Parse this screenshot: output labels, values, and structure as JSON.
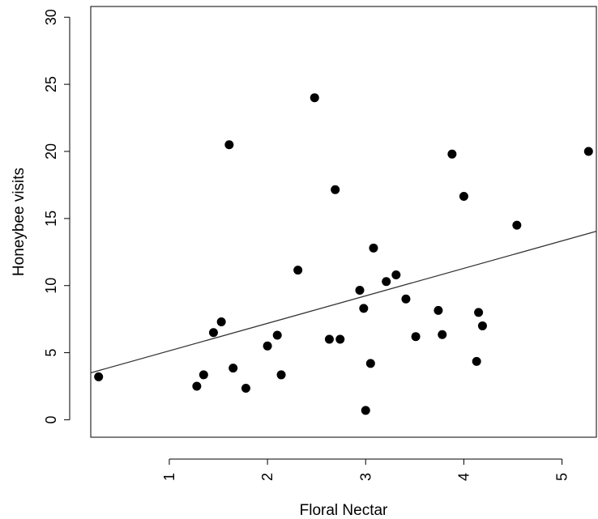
{
  "chart_data": {
    "type": "scatter",
    "xlabel": "Floral Nectar",
    "ylabel": "Honeybee visits",
    "xlim": [
      0.2,
      5.35
    ],
    "ylim": [
      -1.3,
      30.8
    ],
    "x_ticks": [
      1,
      2,
      3,
      4,
      5
    ],
    "y_ticks": [
      0,
      5,
      10,
      15,
      20,
      25,
      30
    ],
    "x_tick_labels": [
      "1",
      "2",
      "3",
      "4",
      "5"
    ],
    "y_tick_labels": [
      "0",
      "5",
      "10",
      "15",
      "20",
      "25",
      "30"
    ],
    "grid": false,
    "legend": "none",
    "marker_color": "#000000",
    "points": [
      {
        "x": 0.28,
        "y": 3.2
      },
      {
        "x": 1.28,
        "y": 2.5
      },
      {
        "x": 1.35,
        "y": 3.35
      },
      {
        "x": 1.45,
        "y": 6.5
      },
      {
        "x": 1.53,
        "y": 7.3
      },
      {
        "x": 1.61,
        "y": 20.5
      },
      {
        "x": 1.65,
        "y": 3.85
      },
      {
        "x": 1.78,
        "y": 2.35
      },
      {
        "x": 2.0,
        "y": 5.5
      },
      {
        "x": 2.1,
        "y": 6.3
      },
      {
        "x": 2.14,
        "y": 3.35
      },
      {
        "x": 2.31,
        "y": 11.15
      },
      {
        "x": 2.48,
        "y": 24.0
      },
      {
        "x": 2.63,
        "y": 6.0
      },
      {
        "x": 2.69,
        "y": 17.15
      },
      {
        "x": 2.74,
        "y": 6.0
      },
      {
        "x": 2.94,
        "y": 9.65
      },
      {
        "x": 2.98,
        "y": 8.3
      },
      {
        "x": 3.0,
        "y": 0.7
      },
      {
        "x": 3.05,
        "y": 4.2
      },
      {
        "x": 3.08,
        "y": 12.8
      },
      {
        "x": 3.21,
        "y": 10.3
      },
      {
        "x": 3.31,
        "y": 10.8
      },
      {
        "x": 3.41,
        "y": 9.0
      },
      {
        "x": 3.51,
        "y": 6.2
      },
      {
        "x": 3.74,
        "y": 8.15
      },
      {
        "x": 3.78,
        "y": 6.35
      },
      {
        "x": 3.88,
        "y": 19.8
      },
      {
        "x": 4.0,
        "y": 16.65
      },
      {
        "x": 4.13,
        "y": 4.35
      },
      {
        "x": 4.15,
        "y": 8.0
      },
      {
        "x": 4.19,
        "y": 7.0
      },
      {
        "x": 4.54,
        "y": 14.5
      },
      {
        "x": 5.27,
        "y": 20.0
      }
    ],
    "regression_line": {
      "x": [
        0.2,
        5.35
      ],
      "y": [
        3.5,
        14.05
      ],
      "color": "#333333"
    }
  }
}
